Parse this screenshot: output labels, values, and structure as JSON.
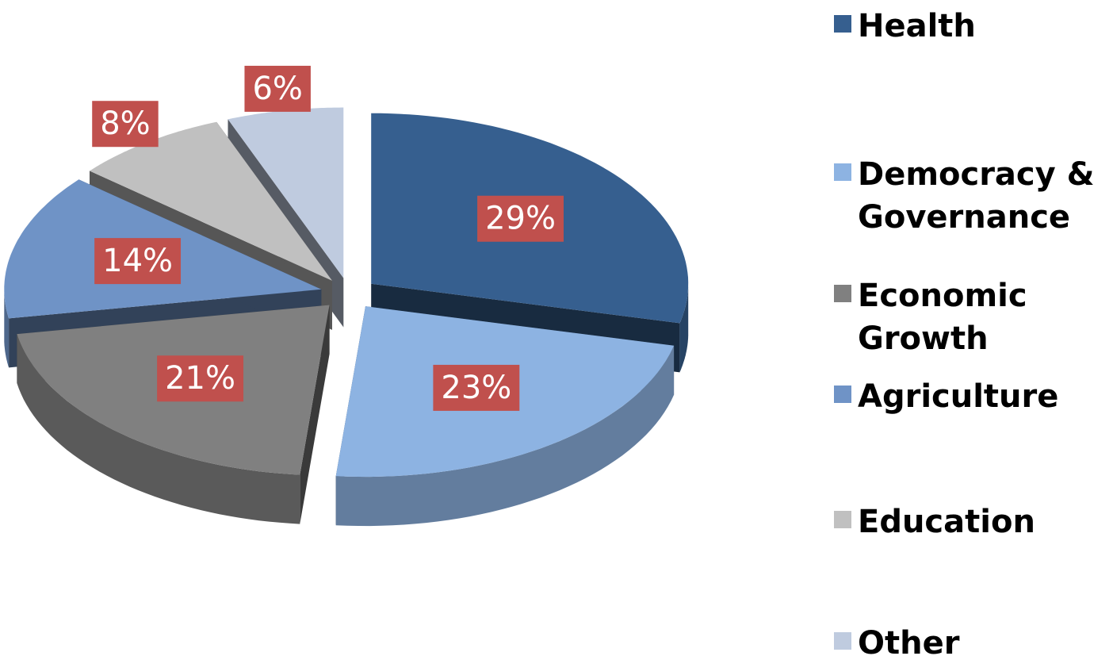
{
  "chart_data": {
    "type": "pie",
    "categories": [
      "Health",
      "Democracy & Governance",
      "Economic Growth",
      "Agriculture",
      "Education",
      "Other"
    ],
    "values": [
      29,
      23,
      21,
      14,
      8,
      6
    ],
    "value_labels": [
      "29%",
      "23%",
      "21%",
      "14%",
      "8%",
      "6%"
    ],
    "colors": [
      "#365f8f",
      "#8db3e2",
      "#808080",
      "#6f93c6",
      "#c0c0c0",
      "#bfcbdf"
    ],
    "label_color": "#c0504d",
    "legend": "right"
  }
}
